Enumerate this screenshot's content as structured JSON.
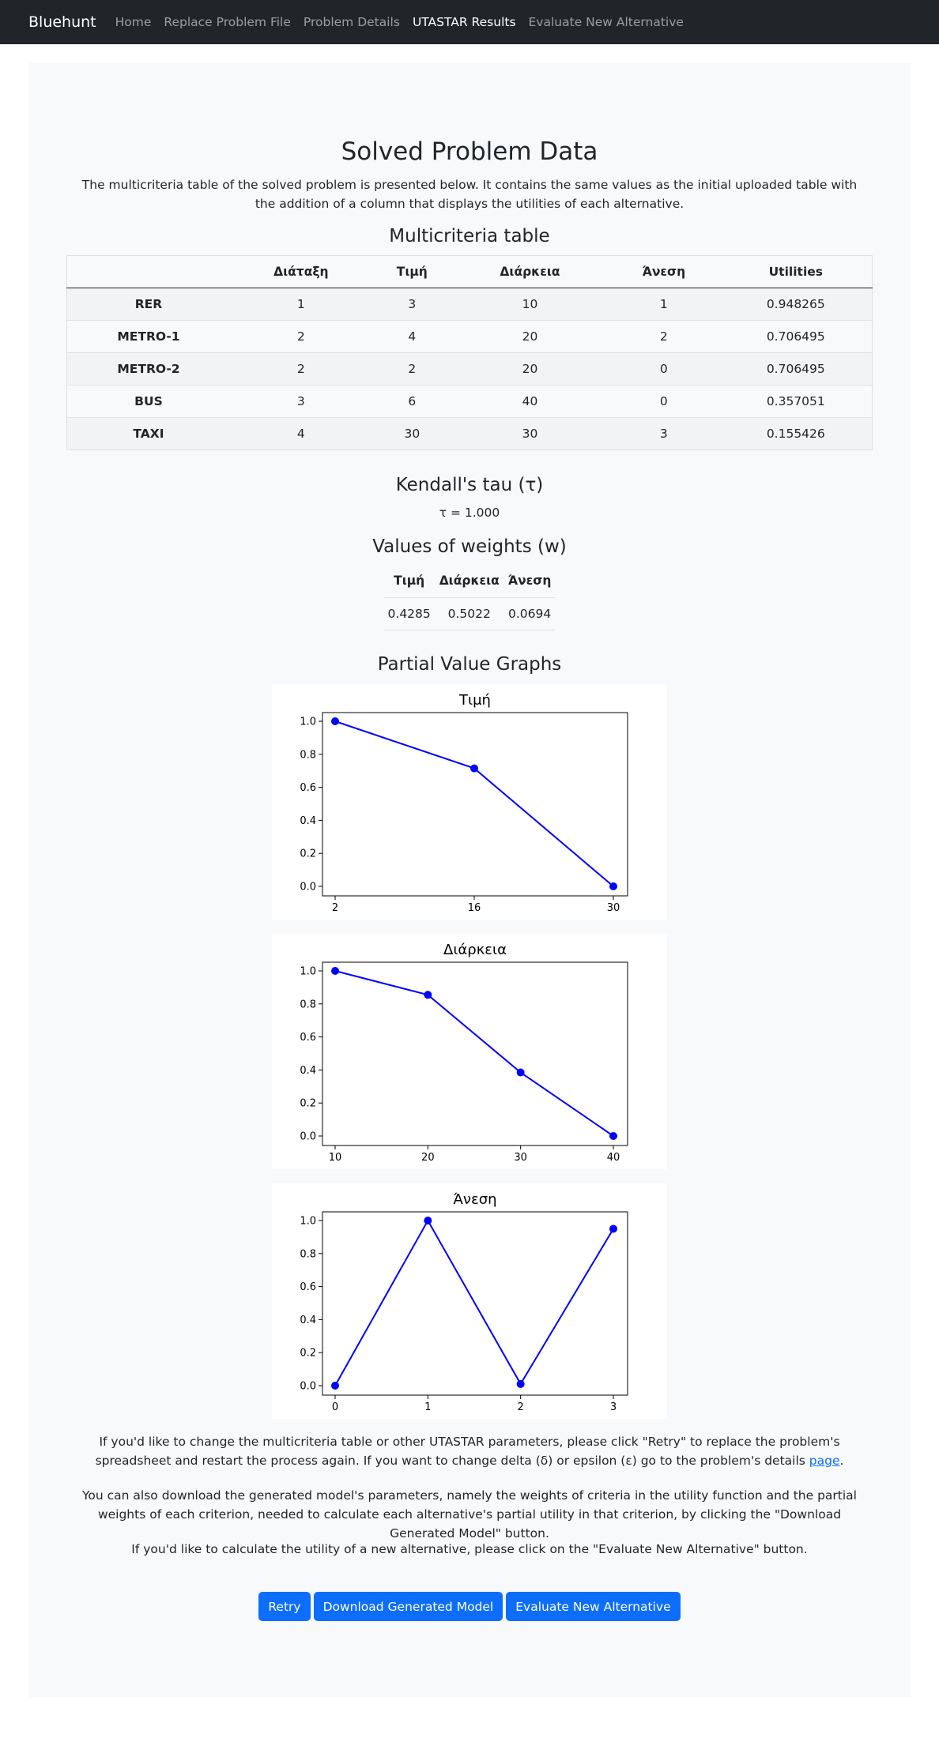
{
  "nav": {
    "brand": "Bluehunt",
    "links": [
      "Home",
      "Replace Problem File",
      "Problem Details",
      "UTASTAR Results",
      "Evaluate New Alternative"
    ]
  },
  "main": {
    "title": "Solved Problem Data",
    "intro": "The multicriteria table of the solved problem is presented below. It contains the same values as the initial uploaded table with the addition of a column that displays the utilities of each alternative.",
    "multicriteria_heading": "Multicriteria table",
    "table": {
      "headers": [
        "",
        "Διάταξη",
        "Τιμή",
        "Διάρκεια",
        "Άνεση",
        "Utilities"
      ],
      "rows": [
        [
          "RER",
          "1",
          "3",
          "10",
          "1",
          "0.948265"
        ],
        [
          "METRO-1",
          "2",
          "4",
          "20",
          "2",
          "0.706495"
        ],
        [
          "METRO-2",
          "2",
          "2",
          "20",
          "0",
          "0.706495"
        ],
        [
          "BUS",
          "3",
          "6",
          "40",
          "0",
          "0.357051"
        ],
        [
          "TAXI",
          "4",
          "30",
          "30",
          "3",
          "0.155426"
        ]
      ]
    },
    "kendall_heading": "Kendall's tau (τ)",
    "kendall_value": "τ = 1.000",
    "weights_heading": "Values of weights (w)",
    "weights": {
      "headers": [
        "Τιμή",
        "Διάρκεια",
        "Άνεση"
      ],
      "values": [
        "0.4285",
        "0.5022",
        "0.0694"
      ]
    },
    "graphs_heading": "Partial Value Graphs",
    "paragraph1_before": "If you'd like to change the multicriteria table or other UTASTAR parameters, please click \"Retry\" to replace the problem's spreadsheet and restart the process again. If you want to change delta (δ) or epsilon (ε) go to the problem's details ",
    "paragraph1_link": "page",
    "paragraph1_after": ".",
    "paragraph2": "You can also download the generated model's parameters, namely the weights of criteria in the utility function and the partial weights of each criterion, needed to calculate each alternative's partial utility in that criterion, by clicking the \"Download Generated Model\" button.",
    "paragraph3": "If you'd like to calculate the utility of a new alternative, please click on the \"Evaluate New Alternative\" button.",
    "buttons": {
      "retry": "Retry",
      "download": "Download Generated Model",
      "evaluate": "Evaluate New Alternative"
    }
  },
  "colors": {
    "navbar": "#212529",
    "primary": "#0d6efd",
    "series": "#0000ff"
  },
  "chart_data": [
    {
      "type": "line",
      "title": "Τιμή",
      "x": [
        2,
        16,
        30
      ],
      "y": [
        1.0,
        0.715,
        0.0
      ],
      "xticks": [
        "2",
        "16",
        "30"
      ],
      "yticks": [
        "0.0",
        "0.2",
        "0.4",
        "0.6",
        "0.8",
        "1.0"
      ],
      "xlim": [
        2,
        30
      ],
      "ylim": [
        0,
        1
      ],
      "grid": false
    },
    {
      "type": "line",
      "title": "Διάρκεια",
      "x": [
        10,
        20,
        30,
        40
      ],
      "y": [
        1.0,
        0.855,
        0.385,
        0.0
      ],
      "xticks": [
        "10",
        "20",
        "30",
        "40"
      ],
      "yticks": [
        "0.0",
        "0.2",
        "0.4",
        "0.6",
        "0.8",
        "1.0"
      ],
      "xlim": [
        10,
        40
      ],
      "ylim": [
        0,
        1
      ],
      "grid": false
    },
    {
      "type": "line",
      "title": "Άνεση",
      "x": [
        0,
        1,
        2,
        3
      ],
      "y": [
        0.0,
        1.0,
        0.01,
        0.95
      ],
      "xticks": [
        "0",
        "1",
        "2",
        "3"
      ],
      "yticks": [
        "0.0",
        "0.2",
        "0.4",
        "0.6",
        "0.8",
        "1.0"
      ],
      "xlim": [
        0,
        3
      ],
      "ylim": [
        0,
        1
      ],
      "grid": false
    }
  ]
}
